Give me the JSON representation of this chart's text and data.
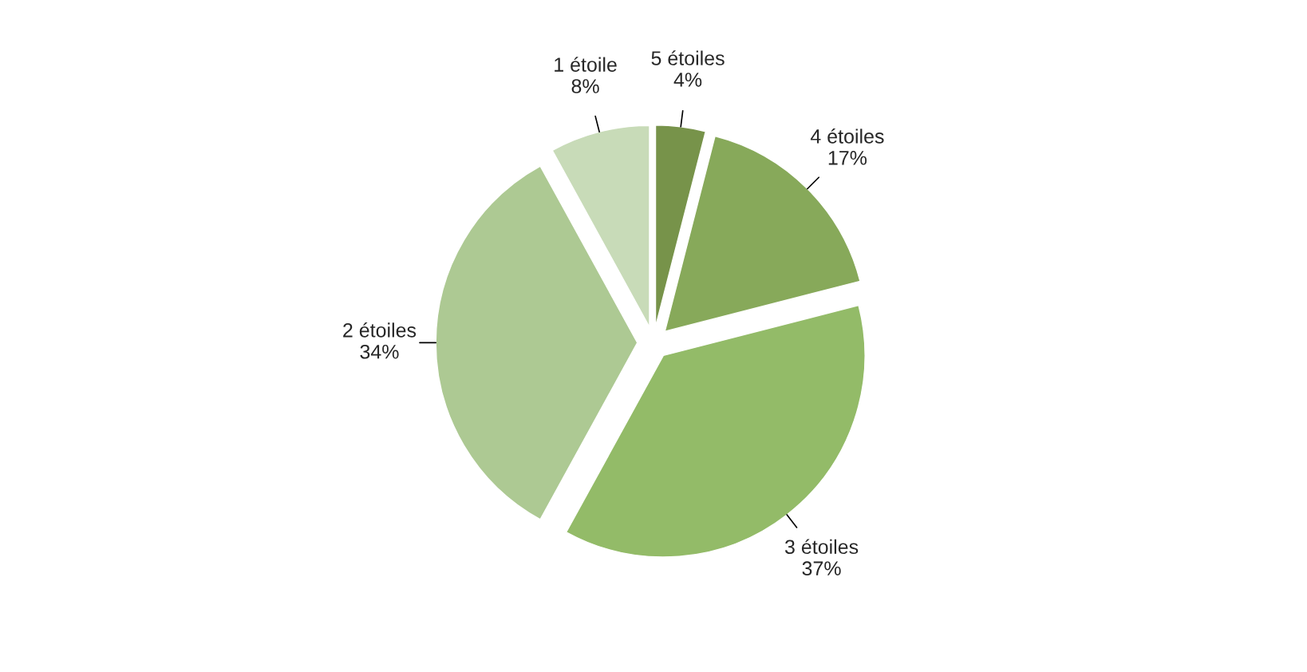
{
  "chart_data": {
    "type": "pie",
    "categories": [
      "5 étoiles",
      "4 étoiles",
      "3 étoiles",
      "2 étoiles",
      "1 étoile"
    ],
    "values": [
      4,
      17,
      37,
      34,
      8
    ],
    "value_labels": [
      "4%",
      "17%",
      "37%",
      "34%",
      "8%"
    ],
    "colors": [
      "#77934a",
      "#87a95a",
      "#93bb68",
      "#adc993",
      "#c8dbb8"
    ]
  }
}
